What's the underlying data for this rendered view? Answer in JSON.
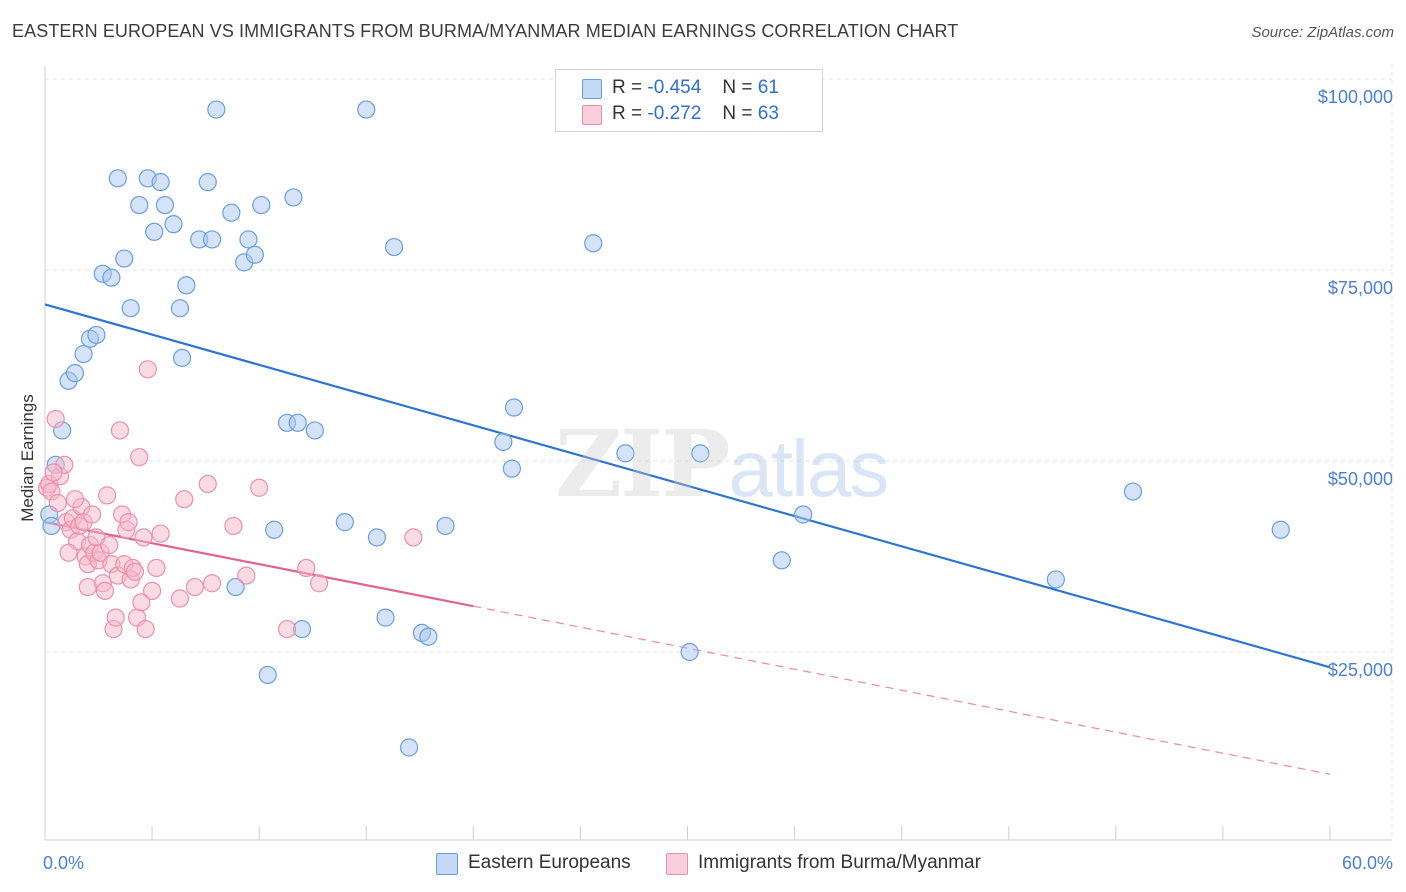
{
  "title": "EASTERN EUROPEAN VS IMMIGRANTS FROM BURMA/MYANMAR MEDIAN EARNINGS CORRELATION CHART",
  "source": "Source: ZipAtlas.com",
  "watermark": {
    "zip": "ZIP",
    "atlas": "atlas"
  },
  "legend": {
    "rows": [
      {
        "r_label": "R =",
        "r_value": "-0.454",
        "n_label": "N =",
        "n_value": "61",
        "color": "#a9c7ef"
      },
      {
        "r_label": "R =",
        "r_value": "-0.272",
        "n_label": "N =",
        "n_value": "63",
        "color": "#f5b7ca"
      }
    ]
  },
  "bottom_legend": [
    {
      "label": "Eastern Europeans",
      "color": "#a9c7ef"
    },
    {
      "label": "Immigrants from Burma/Myanmar",
      "color": "#f5b7ca"
    }
  ],
  "chart_data": {
    "type": "scatter",
    "title": "EASTERN EUROPEAN VS IMMIGRANTS FROM BURMA/MYANMAR MEDIAN EARNINGS CORRELATION CHART",
    "xlabel": "",
    "ylabel": "Median Earnings",
    "xlim": [
      0,
      60
    ],
    "ylim": [
      0,
      105000
    ],
    "x_tick_labels": [
      "0.0%",
      "60.0%"
    ],
    "y_ticks": [
      25000,
      50000,
      75000,
      100000
    ],
    "y_tick_labels": [
      "$25,000",
      "$50,000",
      "$75,000",
      "$100,000"
    ],
    "grid": true,
    "series": [
      {
        "name": "Eastern Europeans",
        "color": "#6a9fe0",
        "fill": "#a9c7ef",
        "trend": {
          "x": [
            0,
            60
          ],
          "y": [
            70500,
            23000
          ],
          "color": "#2f74d0"
        },
        "points": [
          [
            0.2,
            43000
          ],
          [
            0.5,
            49500
          ],
          [
            0.8,
            54000
          ],
          [
            1.1,
            60500
          ],
          [
            1.4,
            61500
          ],
          [
            1.8,
            64000
          ],
          [
            2.1,
            66000
          ],
          [
            2.4,
            66500
          ],
          [
            2.7,
            74500
          ],
          [
            3.1,
            74000
          ],
          [
            3.4,
            87000
          ],
          [
            3.7,
            76500
          ],
          [
            4.0,
            70000
          ],
          [
            4.4,
            83500
          ],
          [
            4.8,
            87000
          ],
          [
            5.1,
            80000
          ],
          [
            5.4,
            86500
          ],
          [
            5.6,
            83500
          ],
          [
            6.0,
            81000
          ],
          [
            6.3,
            70000
          ],
          [
            6.6,
            73000
          ],
          [
            6.4,
            63500
          ],
          [
            7.2,
            79000
          ],
          [
            7.6,
            86500
          ],
          [
            7.8,
            79000
          ],
          [
            8.0,
            96000
          ],
          [
            8.7,
            82500
          ],
          [
            9.3,
            76000
          ],
          [
            9.5,
            79000
          ],
          [
            9.8,
            77000
          ],
          [
            10.1,
            83500
          ],
          [
            11.6,
            84500
          ],
          [
            15.0,
            96000
          ],
          [
            16.3,
            78000
          ],
          [
            25.6,
            78500
          ],
          [
            11.3,
            55000
          ],
          [
            11.8,
            55000
          ],
          [
            12.6,
            54000
          ],
          [
            21.4,
            52500
          ],
          [
            21.8,
            49000
          ],
          [
            21.9,
            57000
          ],
          [
            27.1,
            51000
          ],
          [
            30.6,
            51000
          ],
          [
            10.7,
            41000
          ],
          [
            14.0,
            42000
          ],
          [
            15.5,
            40000
          ],
          [
            18.7,
            41500
          ],
          [
            8.9,
            33500
          ],
          [
            12.0,
            28000
          ],
          [
            15.9,
            29500
          ],
          [
            17.6,
            27500
          ],
          [
            17.9,
            27000
          ],
          [
            10.4,
            22000
          ],
          [
            17.0,
            12500
          ],
          [
            30.1,
            25000
          ],
          [
            34.4,
            37000
          ],
          [
            35.4,
            43000
          ],
          [
            47.2,
            34500
          ],
          [
            50.8,
            46000
          ],
          [
            57.7,
            41000
          ],
          [
            0.3,
            41500
          ]
        ]
      },
      {
        "name": "Immigrants from Burma/Myanmar",
        "color": "#ec8fae",
        "fill": "#f5b7ca",
        "trend": {
          "x": [
            0,
            20
          ],
          "y": [
            42000,
            31000
          ],
          "color": "#e0648f"
        },
        "trend_dashed": {
          "x": [
            20,
            60
          ],
          "y": [
            31000,
            9000
          ],
          "color": "#e88aaa"
        },
        "points": [
          [
            0.1,
            46500
          ],
          [
            0.2,
            47000
          ],
          [
            0.3,
            46000
          ],
          [
            0.5,
            55500
          ],
          [
            0.7,
            48000
          ],
          [
            0.9,
            49500
          ],
          [
            1.0,
            42000
          ],
          [
            1.2,
            41000
          ],
          [
            1.3,
            42500
          ],
          [
            1.5,
            39500
          ],
          [
            1.6,
            41500
          ],
          [
            1.7,
            44000
          ],
          [
            1.8,
            42000
          ],
          [
            1.9,
            37500
          ],
          [
            2.0,
            36500
          ],
          [
            2.1,
            39000
          ],
          [
            2.2,
            43000
          ],
          [
            2.3,
            38000
          ],
          [
            2.4,
            40000
          ],
          [
            2.5,
            37000
          ],
          [
            2.6,
            38000
          ],
          [
            2.7,
            34000
          ],
          [
            2.8,
            33000
          ],
          [
            2.9,
            45500
          ],
          [
            3.0,
            39000
          ],
          [
            3.1,
            36500
          ],
          [
            3.2,
            28000
          ],
          [
            3.3,
            29500
          ],
          [
            3.4,
            35000
          ],
          [
            3.5,
            54000
          ],
          [
            3.6,
            43000
          ],
          [
            3.7,
            36500
          ],
          [
            3.8,
            41000
          ],
          [
            3.9,
            42000
          ],
          [
            4.0,
            34500
          ],
          [
            4.1,
            36000
          ],
          [
            4.2,
            35500
          ],
          [
            4.3,
            29500
          ],
          [
            4.4,
            50500
          ],
          [
            4.5,
            31500
          ],
          [
            4.6,
            40000
          ],
          [
            4.7,
            28000
          ],
          [
            4.8,
            62000
          ],
          [
            5.0,
            33000
          ],
          [
            5.2,
            36000
          ],
          [
            5.4,
            40500
          ],
          [
            6.3,
            32000
          ],
          [
            6.5,
            45000
          ],
          [
            7.0,
            33500
          ],
          [
            7.6,
            47000
          ],
          [
            7.8,
            34000
          ],
          [
            8.8,
            41500
          ],
          [
            9.4,
            35000
          ],
          [
            10.0,
            46500
          ],
          [
            11.3,
            28000
          ],
          [
            12.2,
            36000
          ],
          [
            12.8,
            34000
          ],
          [
            17.2,
            40000
          ],
          [
            0.4,
            48500
          ],
          [
            1.1,
            38000
          ],
          [
            1.4,
            45000
          ],
          [
            2.0,
            33500
          ],
          [
            0.6,
            44500
          ]
        ]
      }
    ]
  }
}
